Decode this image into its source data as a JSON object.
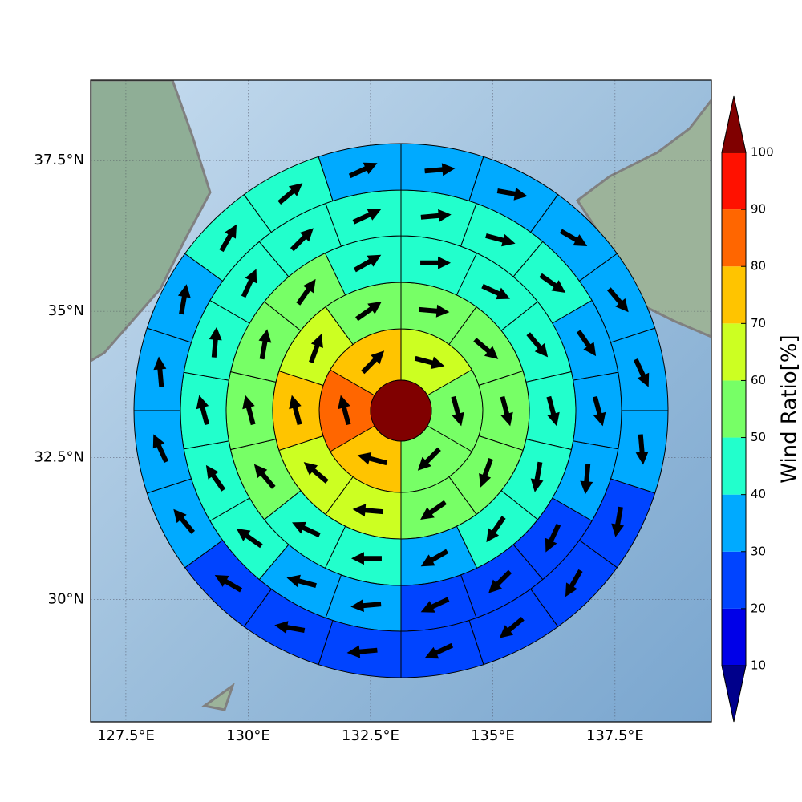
{
  "chart_data": {
    "type": "polar_map",
    "xlim": [
      126.78,
      139.47
    ],
    "ylim": [
      27.8,
      38.8
    ],
    "xticks": [
      {
        "value": 127.5,
        "label": "127.5°E"
      },
      {
        "value": 130,
        "label": "130°E"
      },
      {
        "value": 132.5,
        "label": "132.5°E"
      },
      {
        "value": 135,
        "label": "135°E"
      },
      {
        "value": 137.5,
        "label": "137.5°E"
      }
    ],
    "yticks": [
      {
        "value": 30,
        "label": "30°N"
      },
      {
        "value": 32.5,
        "label": "32.5°N"
      },
      {
        "value": 35,
        "label": "35°N"
      },
      {
        "value": 37.5,
        "label": "37.5°N"
      }
    ],
    "grid": true,
    "colorbar": {
      "label": "Wind Ratio[%]",
      "lim": [
        10,
        100
      ],
      "ticks": [
        10,
        20,
        30,
        40,
        50,
        60,
        70,
        80,
        90,
        100
      ],
      "extend": "both",
      "colors": [
        "#00008b",
        "#0000e8",
        "#0044ff",
        "#00aaff",
        "#22ffcc",
        "#77ff66",
        "#ccff22",
        "#ffc400",
        "#ff6600",
        "#ff1100",
        "#800000"
      ]
    },
    "center_value": 105,
    "rings": [
      {
        "values": [
          65,
          55,
          55,
          75,
          85,
          75
        ],
        "directions": [
          105,
          165,
          225,
          285,
          345,
          45
        ]
      },
      {
        "values": [
          55,
          55,
          55,
          55,
          55,
          65,
          65,
          75,
          65,
          55
        ],
        "directions": [
          95,
          130,
          165,
          200,
          235,
          275,
          310,
          345,
          20,
          55
        ]
      },
      {
        "values": [
          45,
          45,
          45,
          45,
          45,
          45,
          35,
          45,
          45,
          55,
          55,
          55,
          55,
          45
        ],
        "directions": [
          90,
          115,
          140,
          165,
          190,
          215,
          240,
          270,
          295,
          320,
          345,
          10,
          35,
          60
        ]
      },
      {
        "values": [
          45,
          45,
          45,
          35,
          35,
          35,
          25,
          25,
          25,
          35,
          35,
          45,
          45,
          45,
          45,
          45,
          45,
          45
        ],
        "directions": [
          85,
          105,
          125,
          145,
          165,
          185,
          205,
          225,
          245,
          265,
          285,
          305,
          325,
          345,
          5,
          25,
          45,
          65
        ]
      },
      {
        "values": [
          35,
          35,
          35,
          35,
          35,
          35,
          25,
          25,
          25,
          25,
          25,
          25,
          25,
          35,
          35,
          35,
          35,
          45,
          45,
          35
        ],
        "directions": [
          85,
          100,
          120,
          140,
          155,
          175,
          190,
          210,
          230,
          245,
          265,
          280,
          300,
          320,
          335,
          355,
          10,
          30,
          50,
          65
        ]
      }
    ]
  }
}
